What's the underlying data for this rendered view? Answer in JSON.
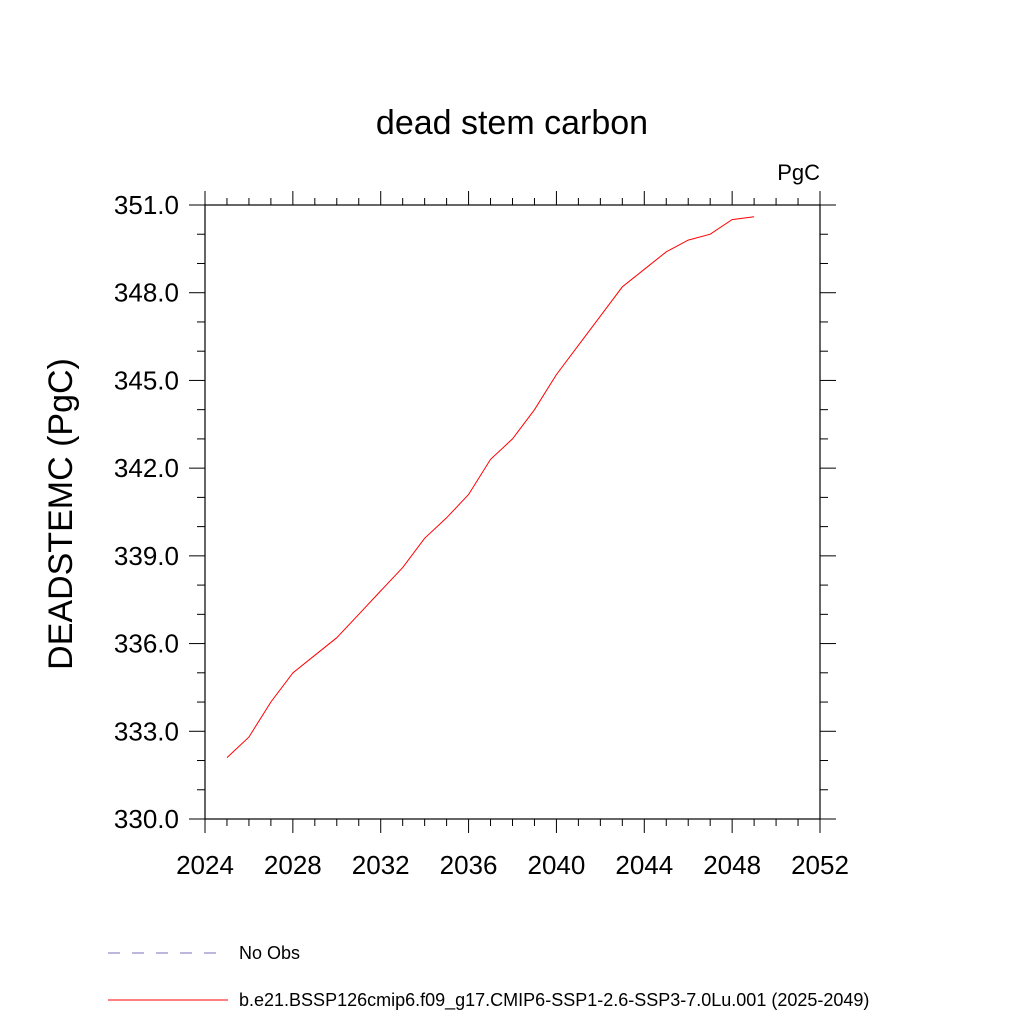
{
  "chart_data": {
    "type": "line",
    "title": "dead stem carbon",
    "units_label": "PgC",
    "ylabel": "DEADSTEMC  (PgC)",
    "xlabel": "",
    "xlim": [
      2024,
      2052
    ],
    "ylim": [
      330.0,
      351.0
    ],
    "x_ticks": [
      "2024",
      "2028",
      "2032",
      "2036",
      "2040",
      "2044",
      "2048",
      "2052"
    ],
    "y_ticks": [
      "330.0",
      "333.0",
      "336.0",
      "339.0",
      "342.0",
      "345.0",
      "348.0",
      "351.0"
    ],
    "grid": false,
    "legend_position": "bottom-left",
    "series": [
      {
        "name": "b.e21.BSSP126cmip6.f09_g17.CMIP6-SSP1-2.6-SSP3-7.0Lu.001 (2025-2049)",
        "color": "#ff0000",
        "style": "solid",
        "x": [
          2025,
          2026,
          2027,
          2028,
          2029,
          2030,
          2031,
          2032,
          2033,
          2034,
          2035,
          2036,
          2037,
          2038,
          2039,
          2040,
          2041,
          2042,
          2043,
          2044,
          2045,
          2046,
          2047,
          2048,
          2049
        ],
        "y": [
          332.1,
          332.8,
          334.0,
          335.0,
          335.6,
          336.2,
          337.0,
          337.8,
          338.6,
          339.6,
          340.3,
          341.1,
          342.3,
          343.0,
          344.0,
          345.2,
          346.2,
          347.2,
          348.2,
          348.8,
          349.4,
          349.8,
          350.0,
          350.5,
          350.6
        ]
      },
      {
        "name": "No Obs",
        "color": "#7a6fbf",
        "style": "dashed",
        "x": [],
        "y": []
      }
    ]
  }
}
